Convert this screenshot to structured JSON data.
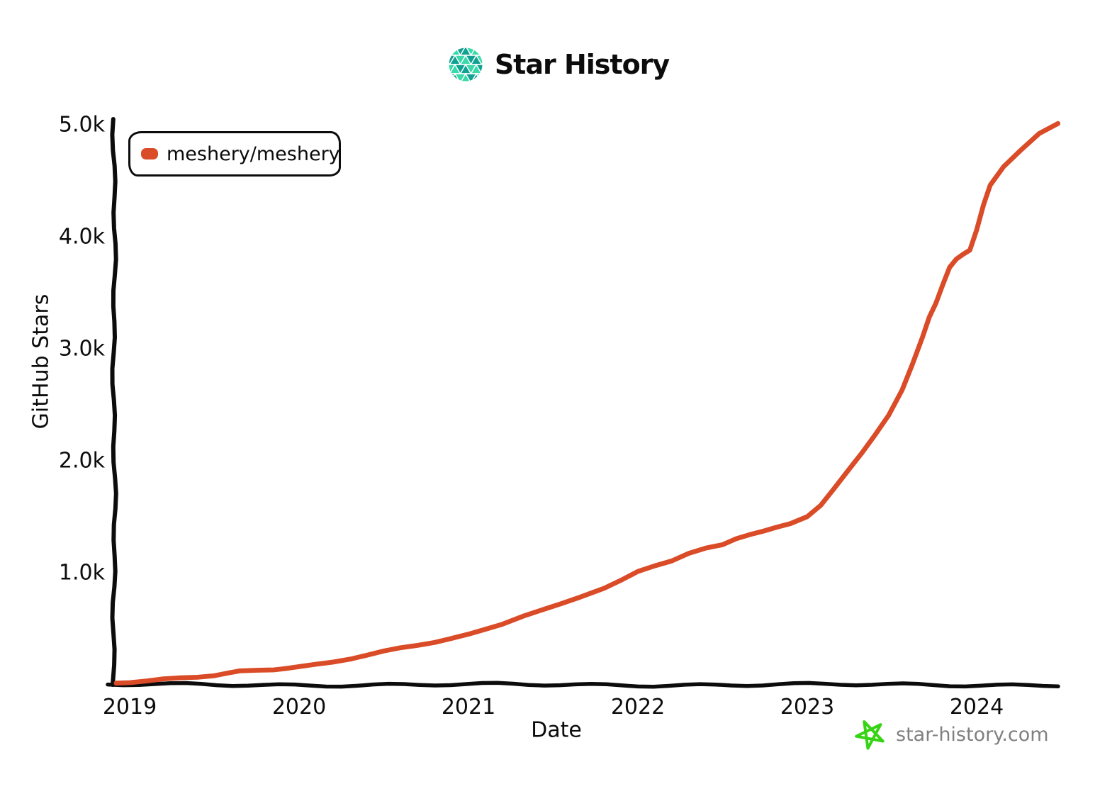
{
  "header": {
    "title": "Star History",
    "logo_icon": "star-history-mosaic-logo"
  },
  "legend": {
    "items": [
      {
        "label": "meshery/meshery",
        "color": "#da4b28"
      }
    ]
  },
  "axes": {
    "y_label": "GitHub Stars",
    "x_label": "Date"
  },
  "footer": {
    "site": "star-history.com",
    "star_icon": "green-doodle-star",
    "text_color": "#808080",
    "star_color": "#36d414"
  },
  "colors": {
    "line": "#da4b28",
    "axis": "#0c0c0c",
    "background": "#ffffff",
    "logo_dark_teal": "#11a192",
    "logo_light_teal": "#39d9a9"
  },
  "chart_data": {
    "type": "line",
    "title": "Star History",
    "xlabel": "Date",
    "ylabel": "GitHub Stars",
    "legend_position": "top-left",
    "grid": false,
    "style": "hand-drawn (xkcd)",
    "xlim": [
      2018.9,
      2024.55
    ],
    "ylim": [
      0,
      5000
    ],
    "x_ticks": [
      2019,
      2020,
      2021,
      2022,
      2023,
      2024
    ],
    "y_ticks": [
      {
        "value": 1000,
        "label": "1.0k"
      },
      {
        "value": 2000,
        "label": "2.0k"
      },
      {
        "value": 3000,
        "label": "3.0k"
      },
      {
        "value": 4000,
        "label": "4.0k"
      },
      {
        "value": 5000,
        "label": "5.0k"
      }
    ],
    "series": [
      {
        "name": "meshery/meshery",
        "color": "#da4b28",
        "x_unit": "decimal-year",
        "y_unit": "stars",
        "points": [
          [
            2018.92,
            8
          ],
          [
            2019.0,
            18
          ],
          [
            2019.1,
            30
          ],
          [
            2019.2,
            42
          ],
          [
            2019.3,
            52
          ],
          [
            2019.4,
            64
          ],
          [
            2019.5,
            80
          ],
          [
            2019.58,
            98
          ],
          [
            2019.65,
            112
          ],
          [
            2019.75,
            122
          ],
          [
            2019.85,
            132
          ],
          [
            2019.92,
            142
          ],
          [
            2020.0,
            152
          ],
          [
            2020.1,
            172
          ],
          [
            2020.2,
            198
          ],
          [
            2020.3,
            228
          ],
          [
            2020.4,
            258
          ],
          [
            2020.5,
            290
          ],
          [
            2020.6,
            322
          ],
          [
            2020.7,
            350
          ],
          [
            2020.8,
            376
          ],
          [
            2020.9,
            405
          ],
          [
            2021.0,
            440
          ],
          [
            2021.1,
            490
          ],
          [
            2021.2,
            540
          ],
          [
            2021.33,
            612
          ],
          [
            2021.45,
            665
          ],
          [
            2021.55,
            715
          ],
          [
            2021.65,
            775
          ],
          [
            2021.8,
            860
          ],
          [
            2021.9,
            925
          ],
          [
            2022.0,
            1000
          ],
          [
            2022.1,
            1055
          ],
          [
            2022.2,
            1105
          ],
          [
            2022.3,
            1170
          ],
          [
            2022.4,
            1210
          ],
          [
            2022.5,
            1240
          ],
          [
            2022.58,
            1300
          ],
          [
            2022.66,
            1340
          ],
          [
            2022.74,
            1365
          ],
          [
            2022.82,
            1395
          ],
          [
            2022.9,
            1430
          ],
          [
            2023.0,
            1500
          ],
          [
            2023.08,
            1600
          ],
          [
            2023.16,
            1745
          ],
          [
            2023.24,
            1900
          ],
          [
            2023.32,
            2060
          ],
          [
            2023.4,
            2230
          ],
          [
            2023.48,
            2400
          ],
          [
            2023.56,
            2620
          ],
          [
            2023.62,
            2850
          ],
          [
            2023.68,
            3100
          ],
          [
            2023.72,
            3280
          ],
          [
            2023.76,
            3400
          ],
          [
            2023.8,
            3560
          ],
          [
            2023.84,
            3720
          ],
          [
            2023.88,
            3800
          ],
          [
            2023.92,
            3840
          ],
          [
            2023.96,
            3870
          ],
          [
            2024.0,
            4050
          ],
          [
            2024.04,
            4280
          ],
          [
            2024.08,
            4460
          ],
          [
            2024.16,
            4620
          ],
          [
            2024.26,
            4760
          ],
          [
            2024.37,
            4915
          ],
          [
            2024.48,
            5010
          ]
        ]
      }
    ]
  }
}
